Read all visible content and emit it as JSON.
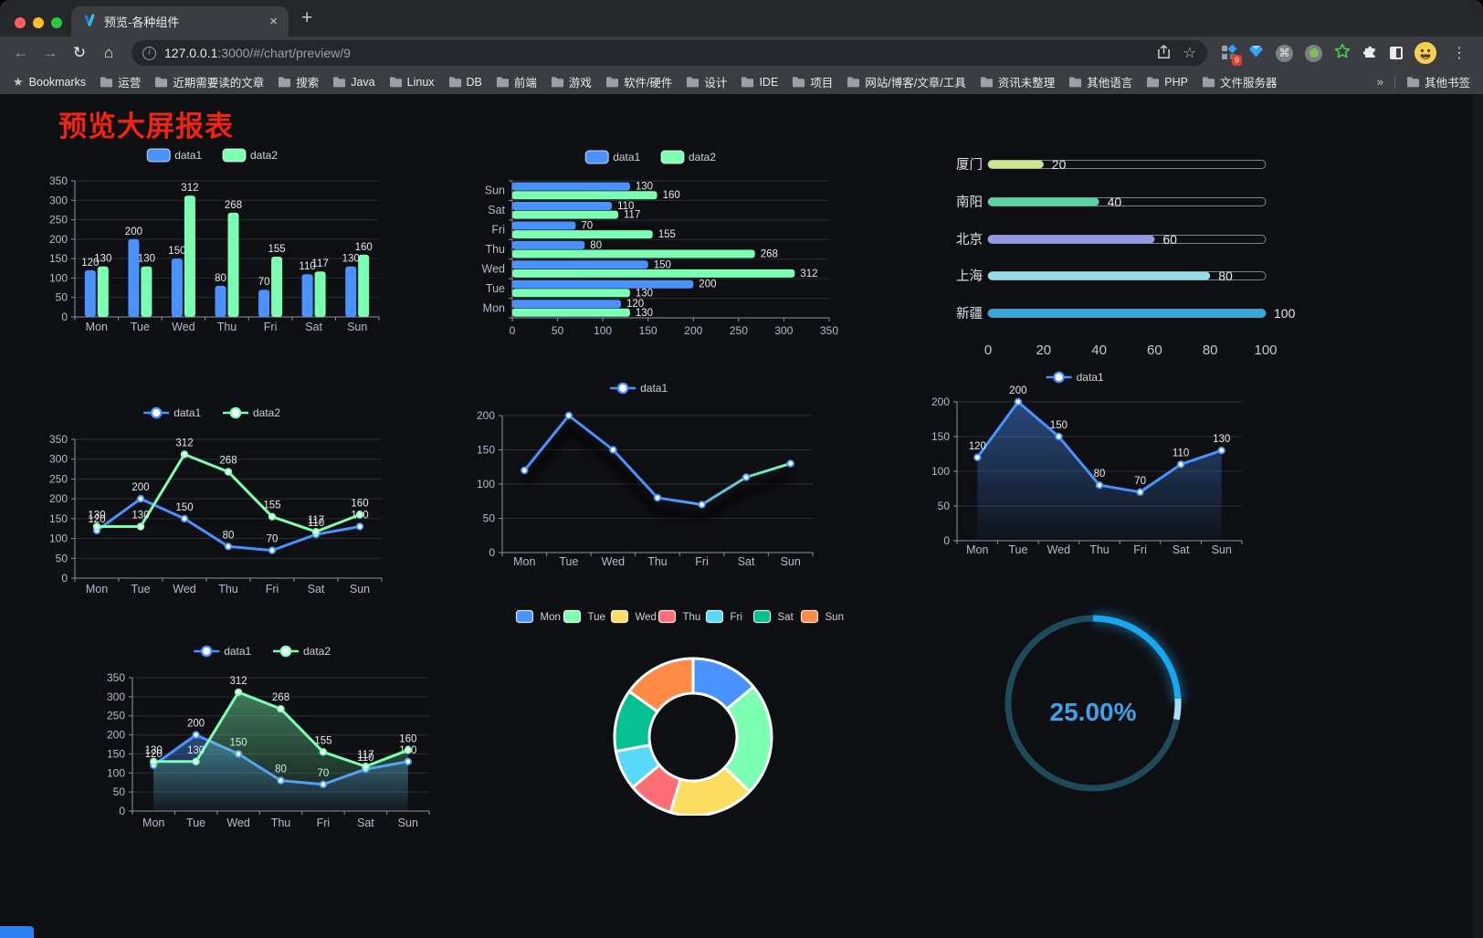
{
  "browser": {
    "tab": {
      "title": "预览-各种组件"
    },
    "icons": {
      "back": "←",
      "forward": "→",
      "reload": "↻",
      "home": "⌂",
      "new_tab": "+",
      "tab_close": "×",
      "star": "☆",
      "bookmarks_star": "★",
      "command": "⌘",
      "menu": "⋮"
    },
    "address": {
      "host": "127.0.0.1",
      "path": ":3000/#/chart/preview/9"
    },
    "extension_badge": "9",
    "bookmarks_bar": {
      "star_label": "Bookmarks",
      "folders": [
        "运营",
        "近期需要读的文章",
        "搜索",
        "Java",
        "Linux",
        "DB",
        "前端",
        "游戏",
        "软件/硬件",
        "设计",
        "IDE",
        "项目",
        "网站/博客/文章/工具",
        "资讯未整理",
        "其他语言",
        "PHP",
        "文件服务器"
      ],
      "overflow": "»",
      "other": "其他书签"
    }
  },
  "page": {
    "title": "预览大屏报表"
  },
  "chart_data": [
    {
      "id": "bar-grouped",
      "type": "bar",
      "title": "",
      "categories": [
        "Mon",
        "Tue",
        "Wed",
        "Thu",
        "Fri",
        "Sat",
        "Sun"
      ],
      "series": [
        {
          "name": "data1",
          "color": "#4992ff",
          "values": [
            120,
            200,
            150,
            80,
            70,
            110,
            130
          ]
        },
        {
          "name": "data2",
          "color": "#7cffb2",
          "values": [
            130,
            130,
            312,
            268,
            155,
            117,
            160
          ]
        }
      ],
      "ylim": [
        0,
        350
      ],
      "yticks": [
        0,
        50,
        100,
        150,
        200,
        250,
        300,
        350
      ],
      "legend_position": "top",
      "grid": true,
      "show_labels": true
    },
    {
      "id": "bar-horizontal",
      "type": "hbar",
      "categories": [
        "Mon",
        "Tue",
        "Wed",
        "Thu",
        "Fri",
        "Sat",
        "Sun"
      ],
      "categories_top_to_bottom": [
        "Sun",
        "Sat",
        "Fri",
        "Thu",
        "Wed",
        "Tue",
        "Mon"
      ],
      "series": [
        {
          "name": "data1",
          "color": "#4992ff",
          "values": [
            120,
            200,
            150,
            80,
            70,
            110,
            130
          ]
        },
        {
          "name": "data2",
          "color": "#7cffb2",
          "values": [
            130,
            130,
            312,
            268,
            155,
            117,
            160
          ]
        }
      ],
      "xlim": [
        0,
        350
      ],
      "xticks": [
        0,
        50,
        100,
        150,
        200,
        250,
        300,
        350
      ],
      "legend_position": "top",
      "show_labels": true
    },
    {
      "id": "city-progress",
      "type": "bar",
      "subtype": "progress-bars",
      "max": 100,
      "items": [
        {
          "label": "厦门",
          "value": 20,
          "color": "#c9e88e"
        },
        {
          "label": "南阳",
          "value": 40,
          "color": "#57d6a4"
        },
        {
          "label": "北京",
          "value": 60,
          "color": "#9499e7"
        },
        {
          "label": "上海",
          "value": 80,
          "color": "#95dee3"
        },
        {
          "label": "新疆",
          "value": 100,
          "color": "#35a7db"
        }
      ],
      "xticks": [
        0,
        20,
        40,
        60,
        80,
        100
      ]
    },
    {
      "id": "line-two-series",
      "type": "line",
      "categories": [
        "Mon",
        "Tue",
        "Wed",
        "Thu",
        "Fri",
        "Sat",
        "Sun"
      ],
      "series": [
        {
          "name": "data1",
          "color": "#4992ff",
          "values": [
            120,
            200,
            150,
            80,
            70,
            110,
            130
          ]
        },
        {
          "name": "data2",
          "color": "#7cffb2",
          "values": [
            130,
            130,
            312,
            268,
            155,
            117,
            160
          ]
        }
      ],
      "ylim": [
        0,
        350
      ],
      "yticks": [
        0,
        50,
        100,
        150,
        200,
        250,
        300,
        350
      ],
      "show_labels": true,
      "legend_position": "top"
    },
    {
      "id": "line-gradient",
      "type": "line",
      "categories": [
        "Mon",
        "Tue",
        "Wed",
        "Thu",
        "Fri",
        "Sat",
        "Sun"
      ],
      "series": [
        {
          "name": "data1",
          "color": "#4992ff",
          "color_end": "#7cffb2",
          "values": [
            120,
            200,
            150,
            80,
            70,
            110,
            130
          ]
        }
      ],
      "ylim": [
        0,
        200
      ],
      "yticks": [
        0,
        50,
        100,
        150,
        200
      ],
      "show_labels": false,
      "shadow": true,
      "legend_position": "top"
    },
    {
      "id": "area-single",
      "type": "area",
      "categories": [
        "Mon",
        "Tue",
        "Wed",
        "Thu",
        "Fri",
        "Sat",
        "Sun"
      ],
      "series": [
        {
          "name": "data1",
          "color": "#4992ff",
          "values": [
            120,
            200,
            150,
            80,
            70,
            110,
            130
          ]
        }
      ],
      "ylim": [
        0,
        200
      ],
      "yticks": [
        0,
        50,
        100,
        150,
        200
      ],
      "show_labels": true,
      "area": true,
      "legend_position": "top"
    },
    {
      "id": "area-two-series",
      "type": "area",
      "categories": [
        "Mon",
        "Tue",
        "Wed",
        "Thu",
        "Fri",
        "Sat",
        "Sun"
      ],
      "series": [
        {
          "name": "data1",
          "color": "#4992ff",
          "values": [
            120,
            200,
            150,
            80,
            70,
            110,
            130
          ]
        },
        {
          "name": "data2",
          "color": "#7cffb2",
          "values": [
            130,
            130,
            312,
            268,
            155,
            117,
            160
          ]
        }
      ],
      "ylim": [
        0,
        350
      ],
      "yticks": [
        0,
        50,
        100,
        150,
        200,
        250,
        300,
        350
      ],
      "show_labels": true,
      "area": true,
      "legend_position": "top"
    },
    {
      "id": "donut-week",
      "type": "pie",
      "items": [
        {
          "label": "Mon",
          "value": 120,
          "color": "#4992ff"
        },
        {
          "label": "Tue",
          "value": 200,
          "color": "#7cffb2"
        },
        {
          "label": "Wed",
          "value": 150,
          "color": "#fddd60"
        },
        {
          "label": "Thu",
          "value": 80,
          "color": "#ff6e76"
        },
        {
          "label": "Fri",
          "value": 70,
          "color": "#58d9f9"
        },
        {
          "label": "Sat",
          "value": 110,
          "color": "#05c091"
        },
        {
          "label": "Sun",
          "value": 130,
          "color": "#ff8a45"
        }
      ],
      "legend_position": "top",
      "inner_radius_ratio": 0.56
    },
    {
      "id": "gauge-progress",
      "type": "gauge",
      "value_label": "25.00%",
      "percent": 25,
      "color": "#17a6f0",
      "track_color": "#1d4b59",
      "text_color": "#3fa2e8"
    }
  ]
}
